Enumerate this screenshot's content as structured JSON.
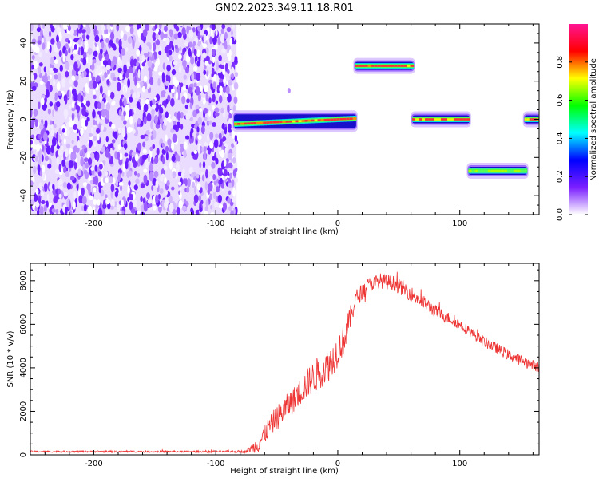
{
  "title": "GN02.2023.349.11.18.R01",
  "chart_data": [
    {
      "type": "heatmap",
      "xlabel": "Height of straight line (km)",
      "ylabel": "Frequency (Hz)",
      "xlim": [
        -252,
        165
      ],
      "ylim": [
        -50,
        50
      ],
      "x_ticks": [
        -200,
        -100,
        0,
        100
      ],
      "y_ticks": [
        -40,
        -20,
        0,
        20,
        40
      ],
      "colorbar": {
        "label": "Normalized spectral amplitude",
        "range": [
          0.0,
          1.0
        ],
        "ticks": [
          0.0,
          0.2,
          0.4,
          0.6,
          0.8
        ],
        "colors": [
          "#ffffff",
          "#7b1fff",
          "#0000ff",
          "#00ffff",
          "#00ff00",
          "#ffff00",
          "#ff0000",
          "#ff1493"
        ]
      },
      "noise_region": {
        "x_range": [
          -252,
          -83
        ],
        "y_range": [
          -50,
          50
        ]
      },
      "bands": [
        {
          "x_start": -85,
          "x_end": 15,
          "freq_start": -2.5,
          "freq_end": 0.5,
          "amplitude": 0.9
        },
        {
          "x_start": 14,
          "x_end": 62,
          "freq_start": 28,
          "freq_end": 28,
          "amplitude": 0.95
        },
        {
          "x_start": 61,
          "x_end": 108,
          "freq_start": 0,
          "freq_end": 0,
          "amplitude": 0.95
        },
        {
          "x_start": 107,
          "x_end": 155,
          "freq_start": -27,
          "freq_end": -27,
          "amplitude": 0.75
        },
        {
          "x_start": 153,
          "x_end": 165,
          "freq_start": 0,
          "freq_end": 0,
          "amplitude": 0.95
        }
      ],
      "faint_spots": [
        {
          "x": -40,
          "y": 15
        }
      ]
    },
    {
      "type": "line",
      "xlabel": "Height of straight line (km)",
      "ylabel": "SNR (10 * v/v)",
      "xlim": [
        -252,
        165
      ],
      "ylim": [
        0,
        8800
      ],
      "x_ticks": [
        -200,
        -100,
        0,
        100
      ],
      "y_ticks": [
        0,
        2000,
        4000,
        6000,
        8000
      ],
      "series": [
        {
          "color": "#ee3333",
          "x": [
            -252,
            -200,
            -150,
            -100,
            -75,
            -65,
            -55,
            -45,
            -35,
            -25,
            -15,
            -5,
            5,
            15,
            25,
            35,
            45,
            55,
            65,
            80,
            100,
            120,
            140,
            165
          ],
          "values": [
            150,
            150,
            150,
            150,
            150,
            500,
            1400,
            2000,
            2600,
            3300,
            3800,
            4300,
            5300,
            7200,
            7800,
            8000,
            7900,
            7600,
            7200,
            6600,
            6000,
            5200,
            4600,
            4000
          ],
          "noise": [
            40,
            40,
            40,
            40,
            60,
            400,
            500,
            600,
            600,
            700,
            800,
            800,
            700,
            400,
            350,
            350,
            350,
            350,
            350,
            300,
            250,
            250,
            250,
            250
          ]
        }
      ]
    }
  ]
}
